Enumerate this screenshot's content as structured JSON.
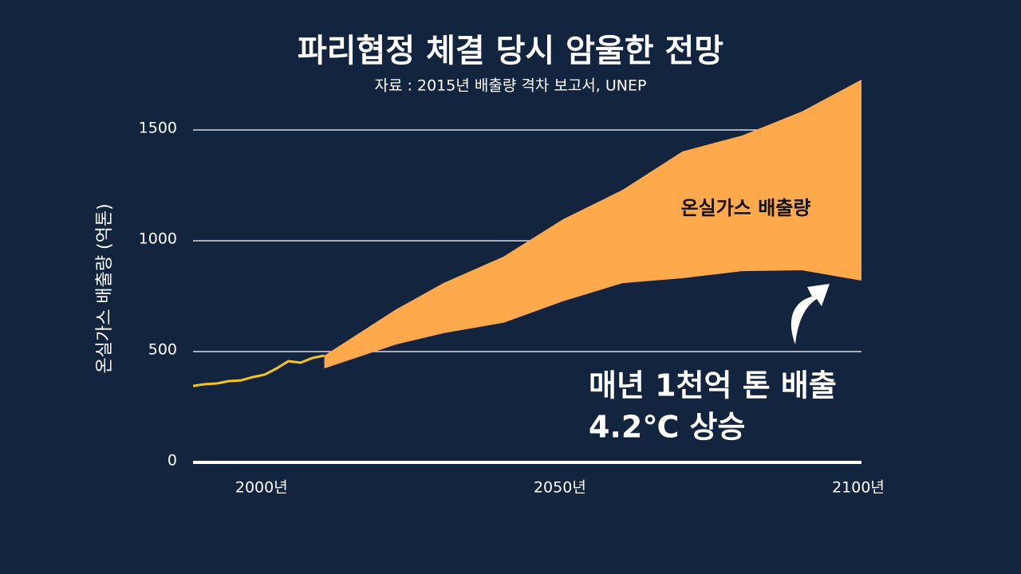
{
  "chart_data": {
    "type": "line",
    "title": "파리협정 체결 당시 암울한 전망",
    "subtitle": "자료 : 2015년 배출량 격차 보고서, UNEP",
    "y_label": "온실가스 배출량 (억톤)",
    "xlim": [
      1988,
      2100
    ],
    "ylim": [
      0,
      1750
    ],
    "xticks": [
      {
        "value": 2000,
        "label": "2000년"
      },
      {
        "value": 2050,
        "label": "2050년"
      },
      {
        "value": 2100,
        "label": "2100년"
      }
    ],
    "yticks": [
      0,
      500,
      1000,
      1500
    ],
    "grid": true,
    "series": [
      {
        "type": "line",
        "color": "#f5c518",
        "x": [
          1988,
          1990,
          1992,
          1994,
          1996,
          1998,
          2000,
          2002,
          2004,
          2006,
          2008,
          2010
        ],
        "values": [
          345,
          353,
          356,
          367,
          370,
          385,
          396,
          424,
          457,
          450,
          471,
          482
        ]
      },
      {
        "type": "band",
        "name": "온실가스 배출량",
        "color": "#ffa94d",
        "x": [
          2010,
          2022,
          2030,
          2040,
          2050,
          2060,
          2070,
          2080,
          2090,
          2100
        ],
        "high": [
          482,
          690,
          810,
          928,
          1097,
          1230,
          1403,
          1475,
          1583,
          1727
        ],
        "low": [
          424,
          532,
          583,
          630,
          727,
          809,
          831,
          863,
          867,
          820
        ]
      }
    ],
    "annotations": [
      "매년 1천억 톤 배출",
      "4.2℃ 상승"
    ]
  }
}
